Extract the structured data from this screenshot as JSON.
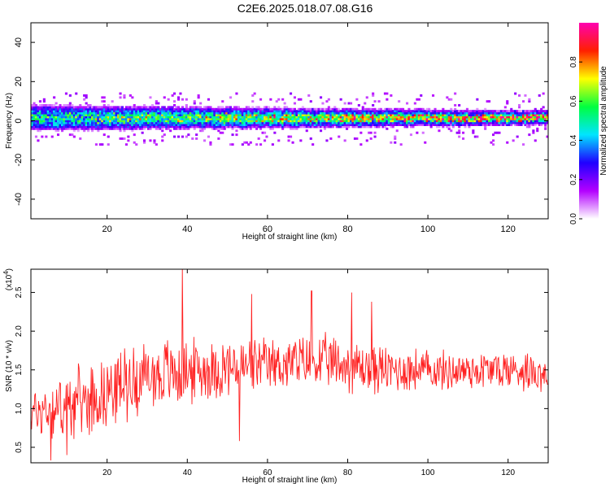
{
  "title": "C2E6.2025.018.07.08.G16",
  "chart_data": [
    {
      "type": "heatmap",
      "xlabel": "Height of straight line (km)",
      "ylabel": "Frequency (Hz)",
      "xlim": [
        1,
        130
      ],
      "ylim": [
        -50,
        50
      ],
      "xticks": [
        20,
        40,
        60,
        80,
        100,
        120
      ],
      "yticks": [
        -40,
        -20,
        0,
        20,
        40
      ],
      "colorbar": {
        "label": "Normalized spectral amplitude",
        "range": [
          0,
          1
        ],
        "ticks": [
          "0.0",
          "0.2",
          "0.4",
          "0.6",
          "0.8"
        ],
        "colors": [
          "#ffffff",
          "#b300ff",
          "#2000ff",
          "#00e5ff",
          "#00ff40",
          "#ffff00",
          "#ff2000",
          "#ff00b0"
        ]
      },
      "band_center_hz": 1.5,
      "band_halfwidth_hz": 4,
      "band_halfwidth_start_hz": 7,
      "band_intensity": {
        "start_km": 1,
        "end_km": 130,
        "start": 0.4,
        "end": 0.85
      },
      "grid": false
    },
    {
      "type": "line",
      "xlabel": "Height of straight line (km)",
      "ylabel": "SNR (10 * v/v)",
      "y_scale_label": "(x10",
      "y_scale_exponent": "4",
      "xlim": [
        1,
        130
      ],
      "ylim": [
        0.3,
        2.8
      ],
      "xticks": [
        20,
        40,
        60,
        80,
        100,
        120
      ],
      "yticks": [
        "0.5",
        "1.0",
        "1.5",
        "2.0",
        "2.5"
      ],
      "color": "#ff2020",
      "x": [
        1,
        5,
        10,
        15,
        20,
        25,
        30,
        35,
        39,
        45,
        50,
        53,
        60,
        65,
        70,
        75,
        80,
        85,
        90,
        95,
        100,
        105,
        110,
        115,
        120,
        125,
        130
      ],
      "mean": [
        0.95,
        1.0,
        1.05,
        1.12,
        1.22,
        1.35,
        1.42,
        1.45,
        1.48,
        1.5,
        1.52,
        1.52,
        1.55,
        1.58,
        1.6,
        1.6,
        1.55,
        1.52,
        1.5,
        1.5,
        1.5,
        1.48,
        1.5,
        1.5,
        1.5,
        1.5,
        1.45
      ],
      "spread": [
        0.35,
        0.45,
        0.5,
        0.5,
        0.5,
        0.55,
        0.5,
        0.55,
        0.5,
        0.45,
        0.45,
        0.45,
        0.4,
        0.4,
        0.4,
        0.4,
        0.4,
        0.4,
        0.35,
        0.35,
        0.3,
        0.3,
        0.3,
        0.3,
        0.3,
        0.3,
        0.3
      ],
      "peaks": [
        [
          38.7,
          2.82
        ],
        [
          53,
          0.58
        ],
        [
          56,
          2.48
        ],
        [
          71,
          2.52
        ],
        [
          81,
          2.5
        ],
        [
          86,
          2.38
        ],
        [
          6,
          0.33
        ],
        [
          10,
          0.4
        ]
      ],
      "grid": false
    }
  ]
}
